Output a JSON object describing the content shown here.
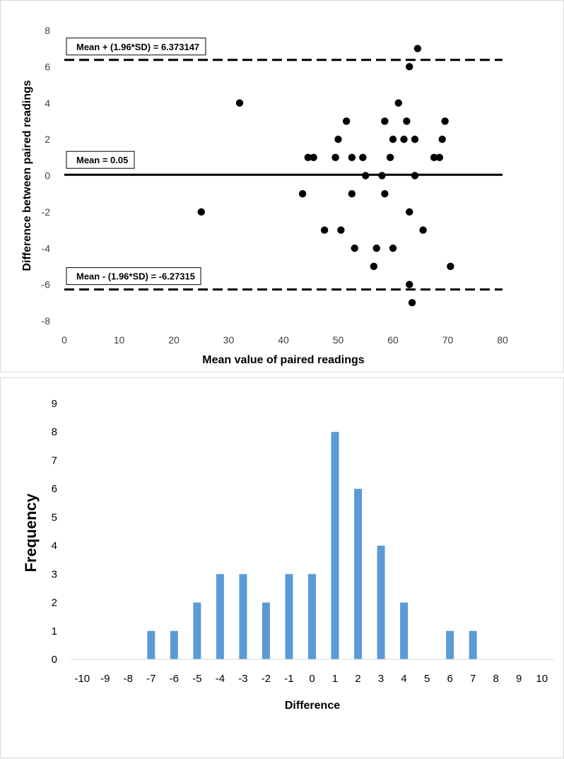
{
  "chart_data": [
    {
      "type": "scatter",
      "title": "",
      "xlabel": "Mean value of paired readings",
      "ylabel": "Difference between paired readings",
      "xlim": [
        0,
        80
      ],
      "ylim": [
        -8,
        8
      ],
      "xticks": [
        "0",
        "10",
        "20",
        "30",
        "40",
        "50",
        "60",
        "70",
        "80"
      ],
      "yticks": [
        "8",
        "6",
        "4",
        "2",
        "0",
        "-2",
        "-4",
        "-6",
        "-8"
      ],
      "grid": false,
      "points": [
        {
          "x": 25,
          "y": -2
        },
        {
          "x": 32,
          "y": 4
        },
        {
          "x": 43.5,
          "y": -1
        },
        {
          "x": 44.5,
          "y": 1
        },
        {
          "x": 45.5,
          "y": 1
        },
        {
          "x": 47.5,
          "y": -3
        },
        {
          "x": 49.5,
          "y": 1
        },
        {
          "x": 50,
          "y": 2
        },
        {
          "x": 50.5,
          "y": -3
        },
        {
          "x": 51.5,
          "y": 3
        },
        {
          "x": 52.5,
          "y": 1
        },
        {
          "x": 52.5,
          "y": -1
        },
        {
          "x": 53,
          "y": -4
        },
        {
          "x": 54.5,
          "y": 1
        },
        {
          "x": 55,
          "y": 0
        },
        {
          "x": 56.5,
          "y": -5
        },
        {
          "x": 57,
          "y": -4
        },
        {
          "x": 58,
          "y": 0
        },
        {
          "x": 58.5,
          "y": 3
        },
        {
          "x": 58.5,
          "y": -1
        },
        {
          "x": 59.5,
          "y": 1
        },
        {
          "x": 60,
          "y": 2
        },
        {
          "x": 60,
          "y": -4
        },
        {
          "x": 61,
          "y": 4
        },
        {
          "x": 62,
          "y": 2
        },
        {
          "x": 62.5,
          "y": 3
        },
        {
          "x": 63,
          "y": 6
        },
        {
          "x": 63,
          "y": -2
        },
        {
          "x": 63,
          "y": -6
        },
        {
          "x": 63.5,
          "y": -7
        },
        {
          "x": 64,
          "y": 2
        },
        {
          "x": 64,
          "y": 0
        },
        {
          "x": 64.5,
          "y": 7
        },
        {
          "x": 65.5,
          "y": -3
        },
        {
          "x": 67.5,
          "y": 1
        },
        {
          "x": 68.5,
          "y": 1
        },
        {
          "x": 69,
          "y": 2
        },
        {
          "x": 69.5,
          "y": 3
        },
        {
          "x": 70.5,
          "y": -5
        }
      ],
      "reference_lines": [
        {
          "name": "upper",
          "y": 6.373147,
          "style": "dashed",
          "label": "Mean + (1.96*SD) = 6.373147"
        },
        {
          "name": "mean",
          "y": 0.05,
          "style": "solid",
          "label": "Mean = 0.05"
        },
        {
          "name": "lower",
          "y": -6.27315,
          "style": "dashed",
          "label": "Mean - (1.96*SD) = -6.27315"
        }
      ]
    },
    {
      "type": "bar",
      "title": "",
      "xlabel": "Difference",
      "ylabel": "Frequency",
      "ylim": [
        0,
        9
      ],
      "yticks": [
        "0",
        "1",
        "2",
        "3",
        "4",
        "5",
        "6",
        "7",
        "8",
        "9"
      ],
      "color": "#5b9bd5",
      "grid": false,
      "categories": [
        "-10",
        "-9",
        "-8",
        "-7",
        "-6",
        "-5",
        "-4",
        "-3",
        "-2",
        "-1",
        "0",
        "1",
        "2",
        "3",
        "4",
        "5",
        "6",
        "7",
        "8",
        "9",
        "10"
      ],
      "values": [
        0,
        0,
        0,
        1,
        1,
        2,
        3,
        3,
        2,
        3,
        3,
        8,
        6,
        4,
        2,
        0,
        1,
        1,
        0,
        0,
        0
      ]
    }
  ]
}
